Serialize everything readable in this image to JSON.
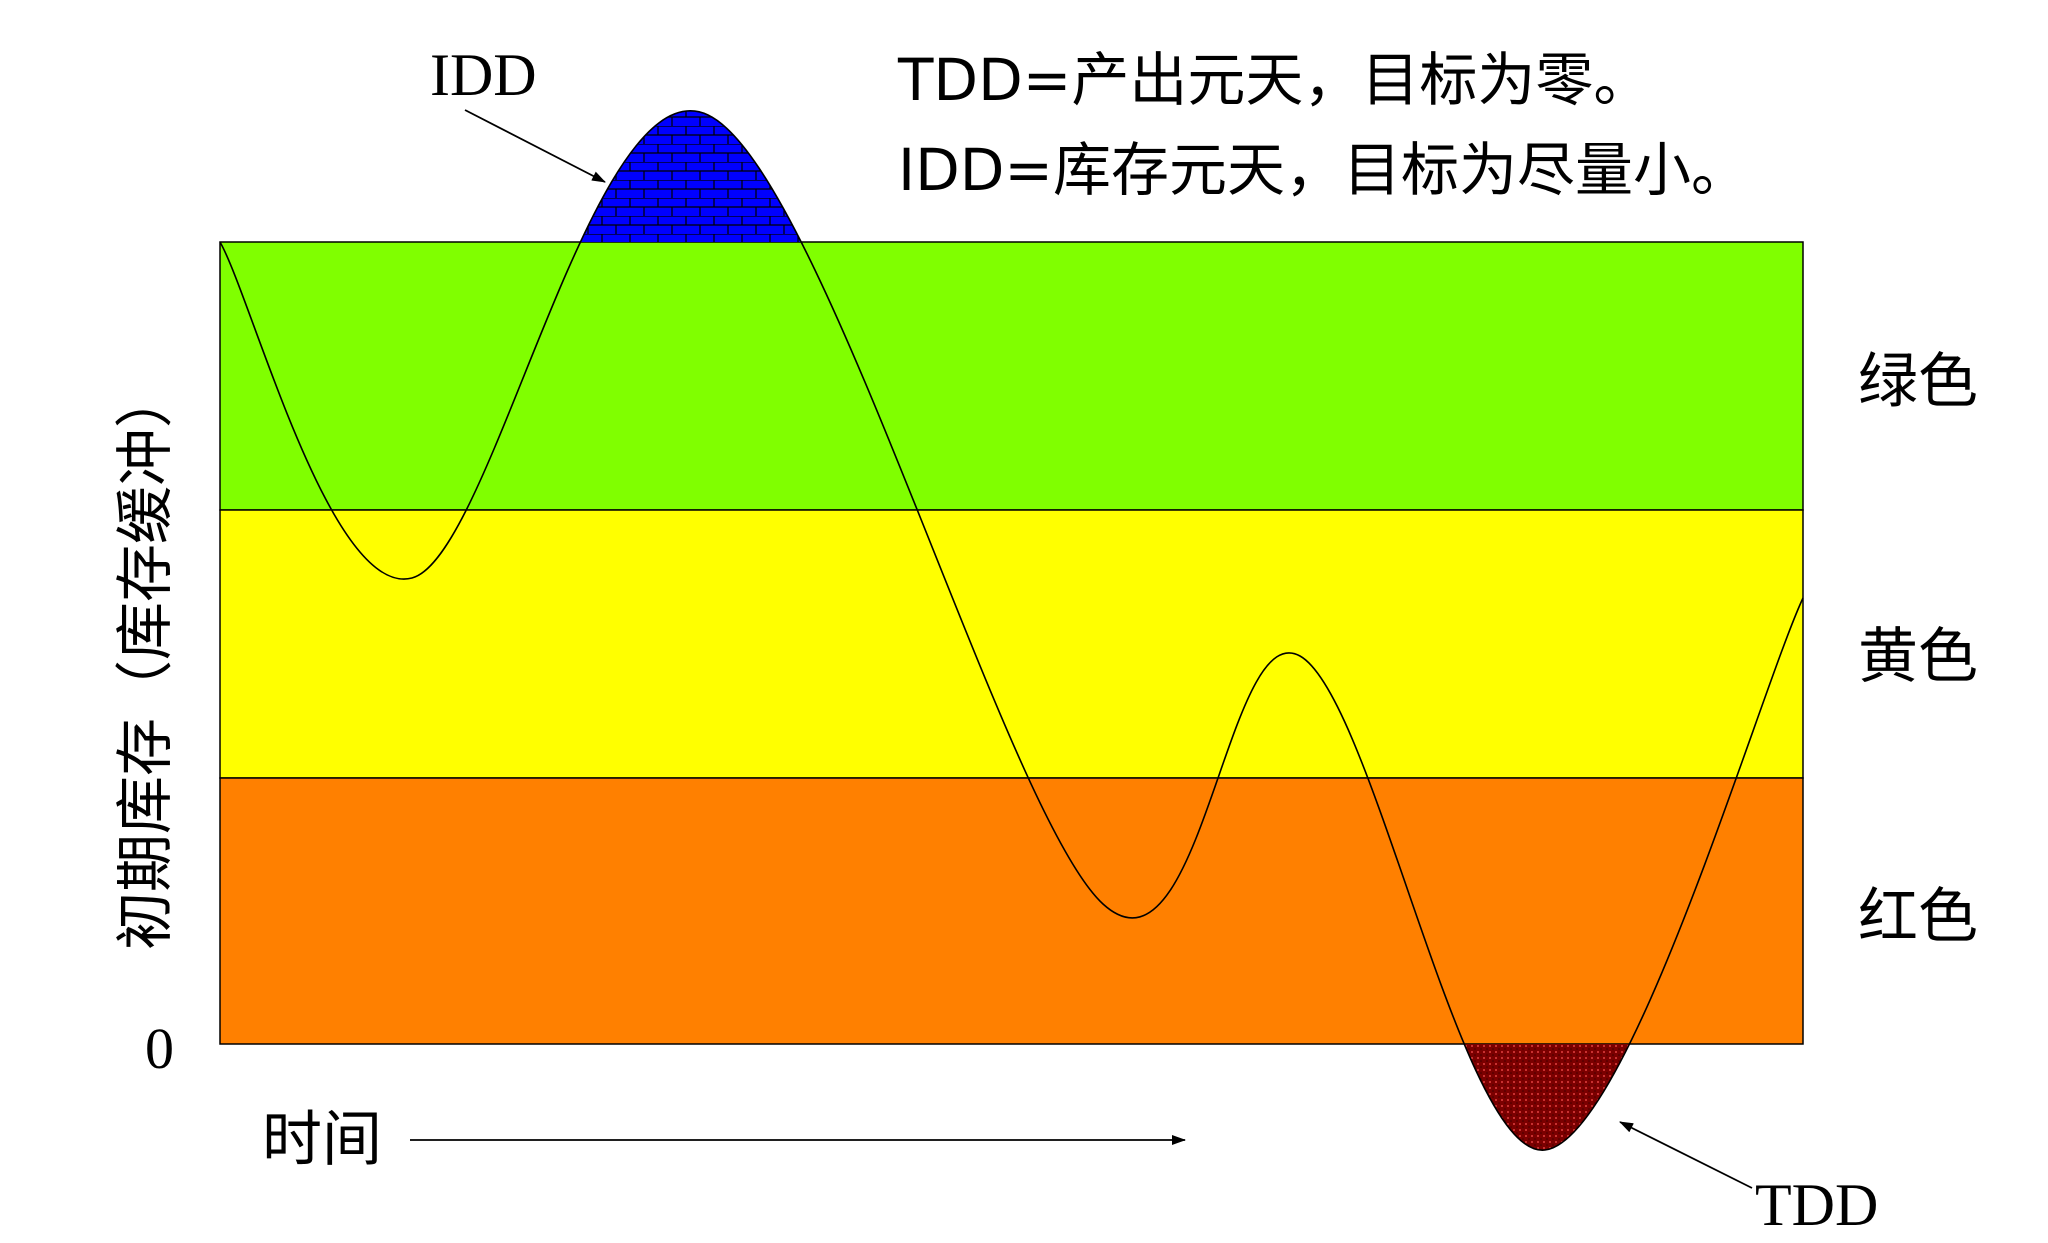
{
  "labels": {
    "idd_top": "IDD",
    "tdd_bottom": "TDD",
    "note_tdd": "TDD=产出元天，目标为零。",
    "note_idd": "IDD=库存元天，目标为尽量小。",
    "zone_green": "绿色",
    "zone_yellow": "黄色",
    "zone_red": "红色",
    "y_axis": "初期库存（库存缓冲）",
    "x_axis": "时间",
    "zero": "0"
  },
  "colors": {
    "green_zone": "#80ff00",
    "yellow_zone": "#ffff00",
    "red_zone": "#ff8000",
    "idd_fill": "#0000ff",
    "tdd_fill": "#7a0000",
    "curve": "#000000"
  }
}
